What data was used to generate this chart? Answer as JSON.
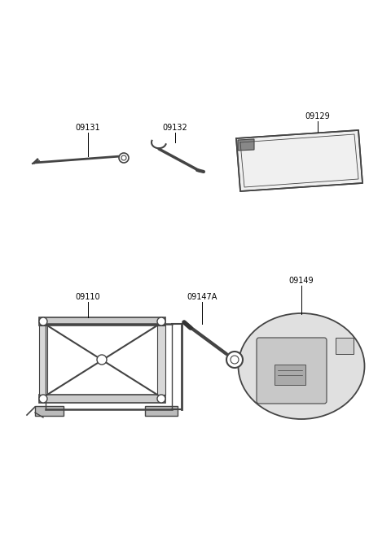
{
  "background_color": "#ffffff",
  "fig_width": 4.8,
  "fig_height": 6.55,
  "dpi": 100,
  "line_color": "#444444",
  "text_color": "#000000",
  "label_fontsize": 7.0
}
